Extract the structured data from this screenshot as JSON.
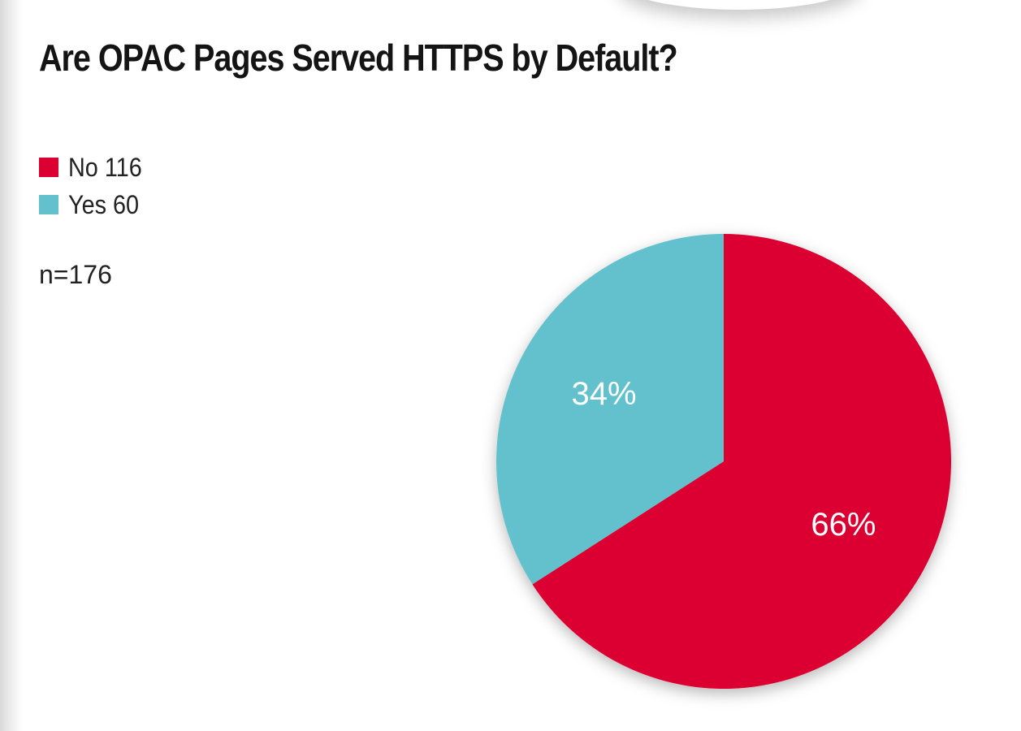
{
  "chart_data": {
    "type": "pie",
    "title": "Are OPAC Pages Served HTTPS by Default?",
    "note": "n=176",
    "legend_placement": "top-left",
    "slices": [
      {
        "name": "No",
        "count": "116",
        "value": 116,
        "percent_label": "66%",
        "color": "#dc0032"
      },
      {
        "name": "Yes",
        "count": "60",
        "value": 60,
        "percent_label": "34%",
        "color": "#62c1cd"
      }
    ]
  }
}
